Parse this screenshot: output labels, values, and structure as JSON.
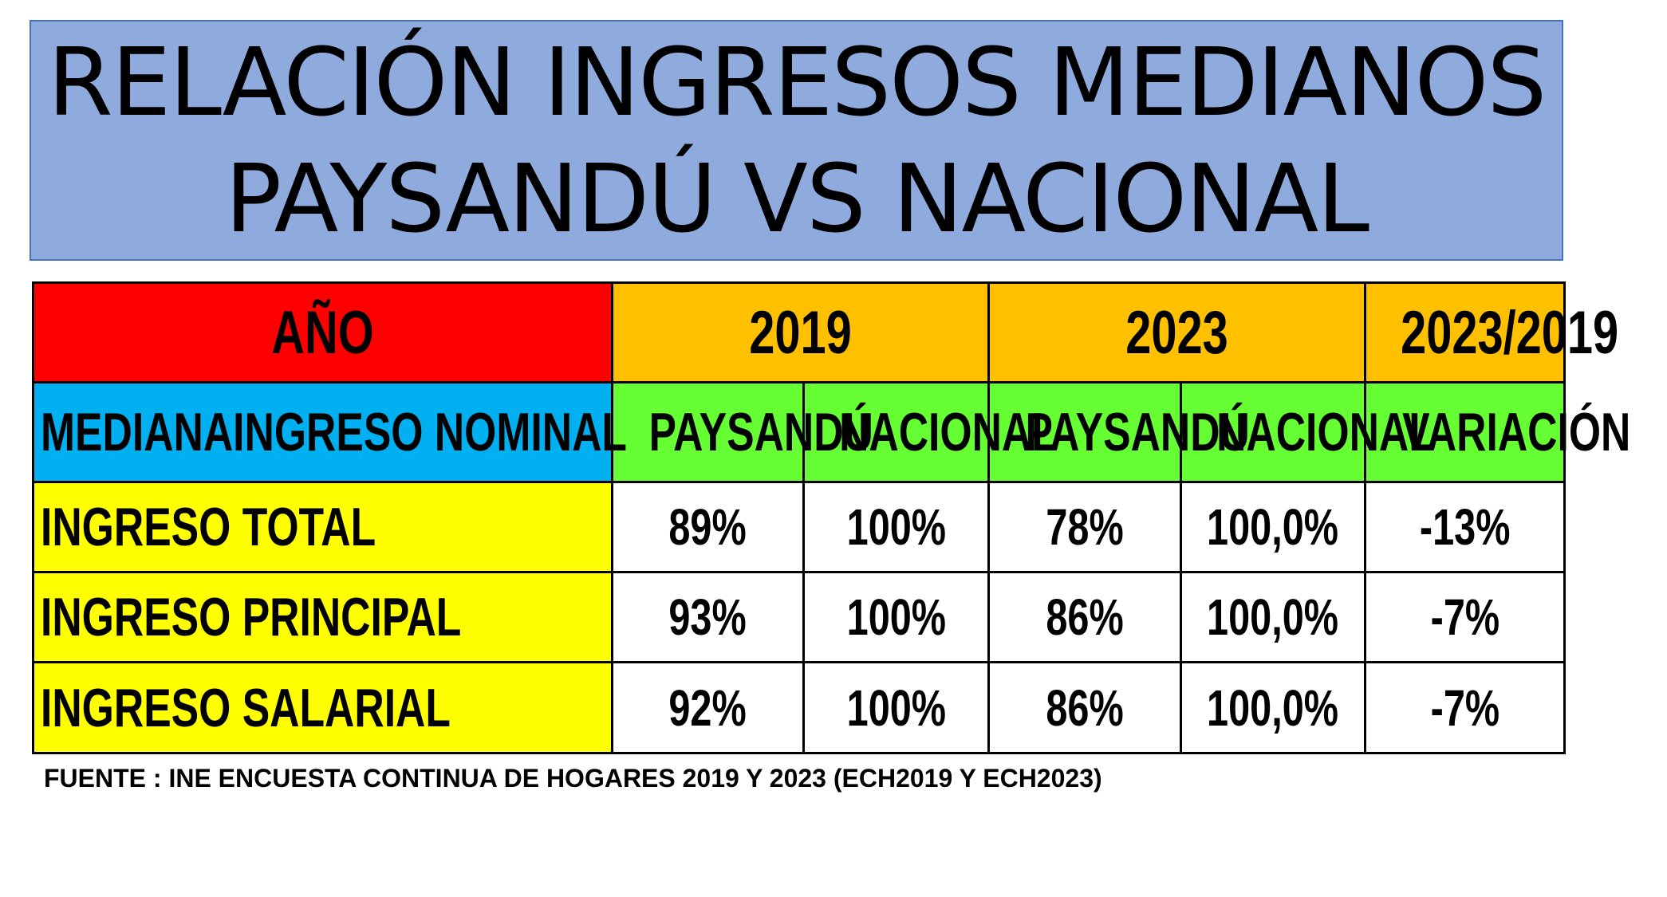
{
  "title": {
    "line1": "RELACIÓN INGRESOS MEDIANOS",
    "line2": "PAYSANDÚ VS NACIONAL"
  },
  "colors": {
    "title_bg": "#8faadc",
    "year_label_bg": "#ff0000",
    "year_header_bg": "#ffc000",
    "subheader_label_bg": "#00b0f0",
    "subheader_bg": "#66ff33",
    "row_label_bg": "#ffff00",
    "value_bg": "#ffffff"
  },
  "chart_data": {
    "type": "table",
    "header": {
      "label": "AÑO",
      "groups": [
        "2019",
        "2023",
        "2023/2019"
      ]
    },
    "subheader": {
      "label": "MEDIANAINGRESO NOMINAL",
      "columns": [
        "PAYSANDÚ",
        "NACIONAL",
        "PAYSANDÚ",
        "NACIONAL",
        "VARIACIÓN"
      ]
    },
    "rows": [
      {
        "label": "INGRESO TOTAL",
        "values": [
          "89%",
          "100%",
          "78%",
          "100,0%",
          "-13%"
        ]
      },
      {
        "label": "INGRESO PRINCIPAL",
        "values": [
          "93%",
          "100%",
          "86%",
          "100,0%",
          "-7%"
        ]
      },
      {
        "label": "INGRESO SALARIAL",
        "values": [
          "92%",
          "100%",
          "86%",
          "100,0%",
          "-7%"
        ]
      }
    ]
  },
  "source": "FUENTE : INE ENCUESTA CONTINUA DE HOGARES 2019 Y 2023 (ECH2019 Y ECH2023)"
}
